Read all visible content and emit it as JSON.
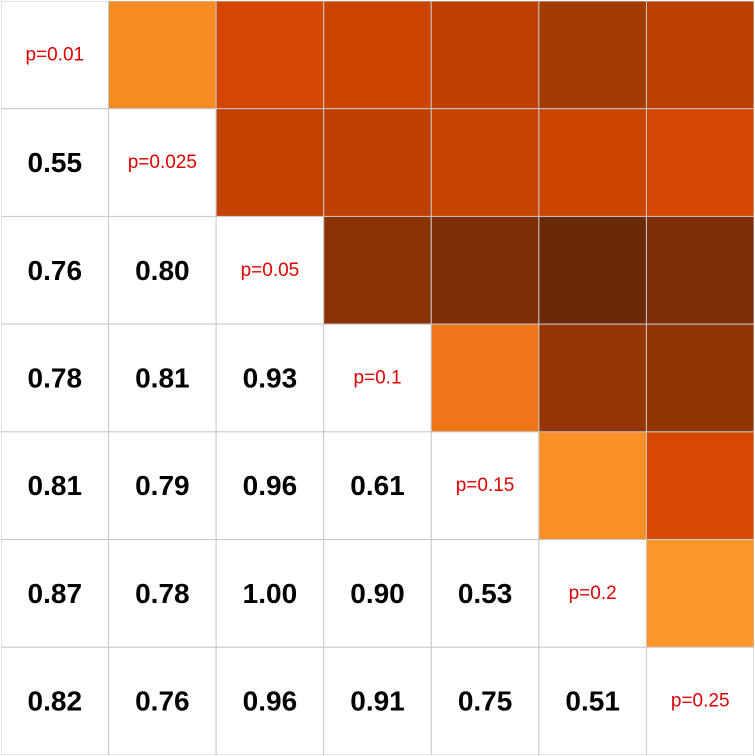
{
  "chart_data": {
    "type": "heatmap",
    "labels": [
      "p=0.01",
      "p=0.025",
      "p=0.05",
      "p=0.1",
      "p=0.15",
      "p=0.2",
      "p=0.25"
    ],
    "lower_triangle": [
      [],
      [
        "0.55"
      ],
      [
        "0.76",
        "0.80"
      ],
      [
        "0.78",
        "0.81",
        "0.93"
      ],
      [
        "0.81",
        "0.79",
        "0.96",
        "0.61"
      ],
      [
        "0.87",
        "0.78",
        "1.00",
        "0.90",
        "0.53"
      ],
      [
        "0.82",
        "0.76",
        "0.96",
        "0.91",
        "0.75",
        "0.51"
      ]
    ],
    "upper_triangle_values": [
      [
        null,
        0.55,
        0.76,
        0.78,
        0.81,
        0.87,
        0.82
      ],
      [
        null,
        null,
        0.8,
        0.81,
        0.79,
        0.78,
        0.76
      ],
      [
        null,
        null,
        null,
        0.93,
        0.96,
        1.0,
        0.96
      ],
      [
        null,
        null,
        null,
        null,
        0.61,
        0.9,
        0.91
      ],
      [
        null,
        null,
        null,
        null,
        null,
        0.53,
        0.75
      ],
      [
        null,
        null,
        null,
        null,
        null,
        null,
        0.51
      ],
      [
        null,
        null,
        null,
        null,
        null,
        null,
        null
      ]
    ],
    "color_scale": {
      "low": "#fd9a2c",
      "mid": "#d94801",
      "high": "#6a2a08",
      "domain": [
        0.5,
        1.0
      ]
    },
    "diagonal_text_color": "#e00000",
    "grid_color": "#c8c8c8"
  }
}
